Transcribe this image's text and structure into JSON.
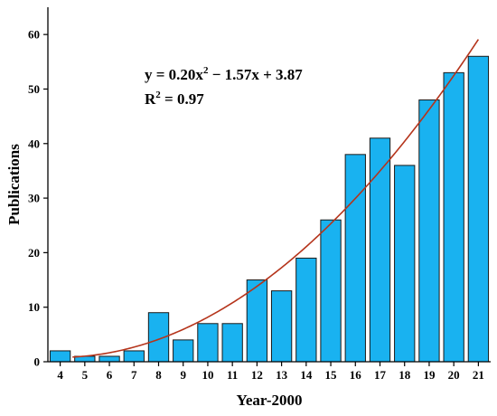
{
  "chart_data": {
    "type": "bar",
    "categories": [
      "4",
      "5",
      "6",
      "7",
      "8",
      "9",
      "10",
      "11",
      "12",
      "13",
      "14",
      "15",
      "16",
      "17",
      "18",
      "19",
      "20",
      "21"
    ],
    "values": [
      2,
      1,
      1,
      2,
      9,
      4,
      7,
      7,
      15,
      13,
      19,
      26,
      38,
      41,
      36,
      48,
      53,
      56
    ],
    "xlabel": "Year-2000",
    "ylabel": "Publications",
    "ylim": [
      0,
      65
    ],
    "yticks": [
      0,
      10,
      20,
      30,
      40,
      50,
      60
    ],
    "grid": false,
    "colors": {
      "bar": "#19b2f0",
      "bar_edge": "#1a1a1a",
      "fit": "#b5341b"
    },
    "fit": {
      "type": "quadratic",
      "coefficients": {
        "a": 0.2,
        "b": -1.57,
        "c": 3.87
      },
      "x_from": 4.5,
      "x_to": 21,
      "equation_parts": [
        "y = 0.20x",
        "2",
        " − 1.57x + 3.87"
      ],
      "r2_parts": [
        "R",
        "2",
        " = 0.97"
      ]
    }
  }
}
